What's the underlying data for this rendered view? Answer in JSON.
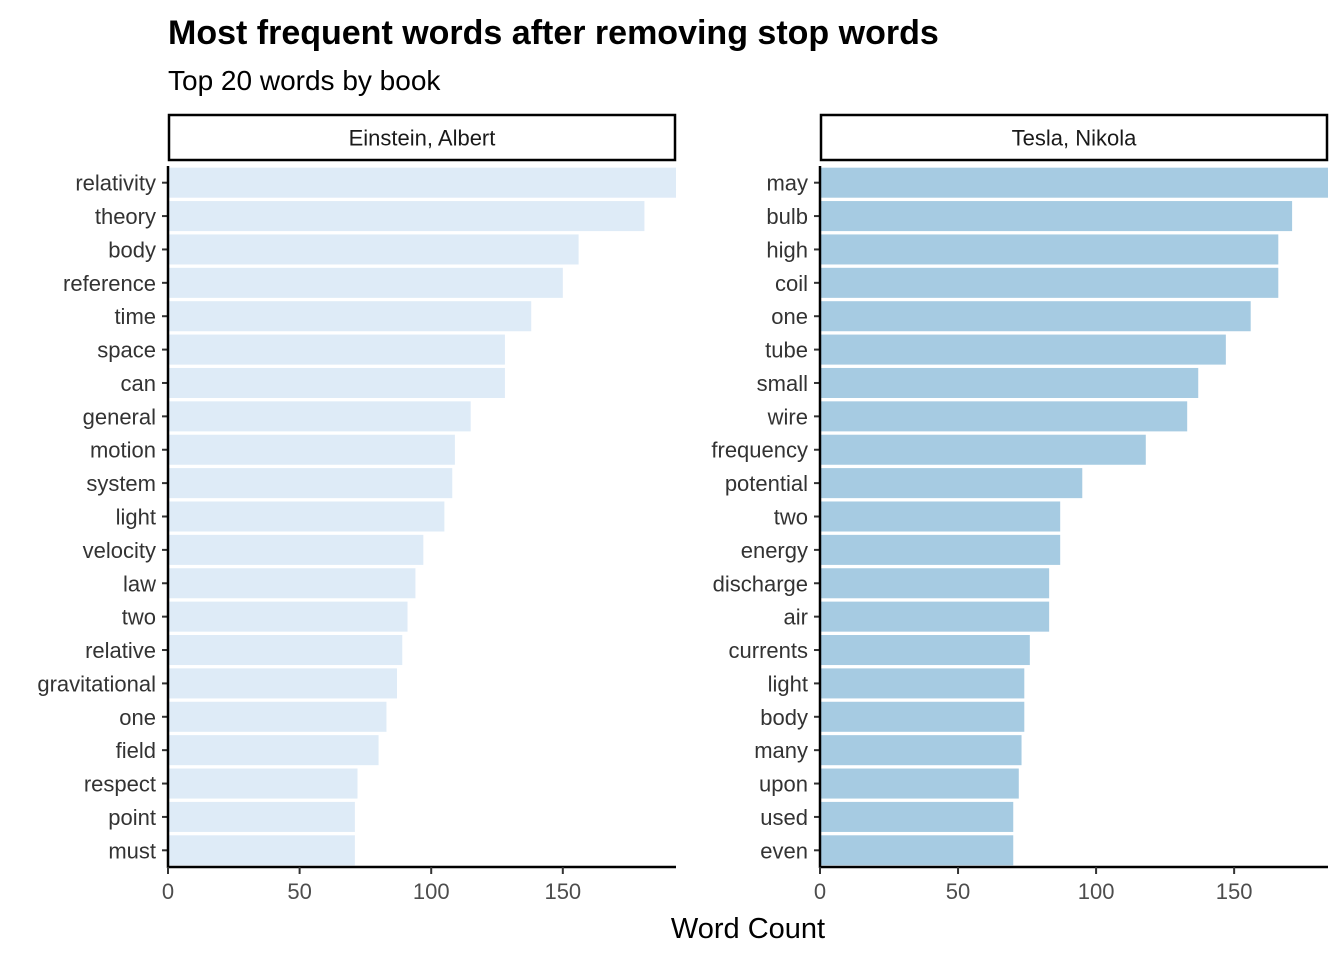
{
  "chart_data": {
    "type": "bar",
    "orientation": "horizontal",
    "title": "Most frequent words after removing stop words",
    "subtitle": "Top 20 words by book",
    "xlabel": "Word Count",
    "ylabel": "",
    "grid": false,
    "legend": "none",
    "facets": [
      {
        "name": "Einstein, Albert",
        "color": "#deebf7",
        "xlim": [
          0,
          193
        ],
        "xticks": [
          0,
          50,
          100,
          150
        ],
        "categories": [
          "relativity",
          "theory",
          "body",
          "reference",
          "time",
          "space",
          "can",
          "general",
          "motion",
          "system",
          "light",
          "velocity",
          "law",
          "two",
          "relative",
          "gravitational",
          "one",
          "field",
          "respect",
          "point",
          "must"
        ],
        "values": [
          193,
          181,
          156,
          150,
          138,
          128,
          128,
          115,
          109,
          108,
          105,
          97,
          94,
          91,
          89,
          87,
          83,
          80,
          72,
          71,
          71
        ]
      },
      {
        "name": "Tesla, Nikola",
        "color": "#a6cbe2",
        "xlim": [
          0,
          184
        ],
        "xticks": [
          0,
          50,
          100,
          150
        ],
        "categories": [
          "may",
          "bulb",
          "high",
          "coil",
          "one",
          "tube",
          "small",
          "wire",
          "frequency",
          "potential",
          "two",
          "energy",
          "discharge",
          "air",
          "currents",
          "light",
          "body",
          "many",
          "upon",
          "used",
          "even"
        ],
        "values": [
          184,
          171,
          166,
          166,
          156,
          147,
          137,
          133,
          118,
          95,
          87,
          87,
          83,
          83,
          76,
          74,
          74,
          73,
          72,
          70,
          70
        ]
      }
    ]
  }
}
